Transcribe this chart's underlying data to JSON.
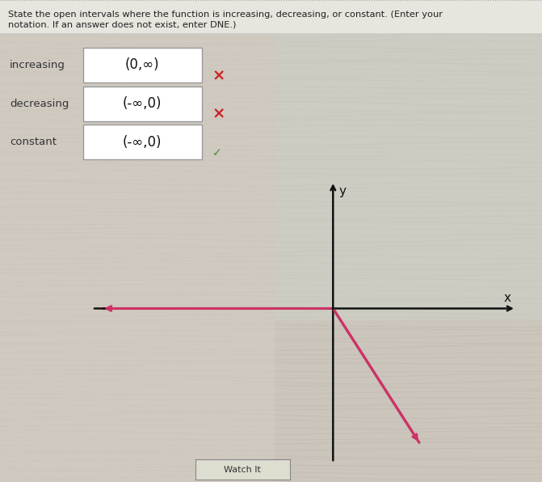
{
  "title_line1": "State the open intervals where the function is increasing, decreasing, or constant. (Enter your",
  "title_line2": "notation. If an answer does not exist, enter DNE.)",
  "rows": [
    {
      "label": "increasing",
      "value": "(0,∞)",
      "mark": "×",
      "mark_color": "#cc2222"
    },
    {
      "label": "decreasing",
      "value": "(-∞,0)",
      "mark": "×",
      "mark_color": "#cc2222"
    },
    {
      "label": "constant",
      "value": "(-∞,0)",
      "mark": "✓",
      "mark_color": "#4a8a3a"
    }
  ],
  "bg_color_left": "#dbd5cc",
  "bg_color_right": "#d8ddd4",
  "text_color": "#333333",
  "axis_color": "#111111",
  "curve_color": "#cc3366",
  "watch_it_label": "Watch It",
  "fig_width": 6.71,
  "fig_height": 5.96,
  "dpi": 100
}
